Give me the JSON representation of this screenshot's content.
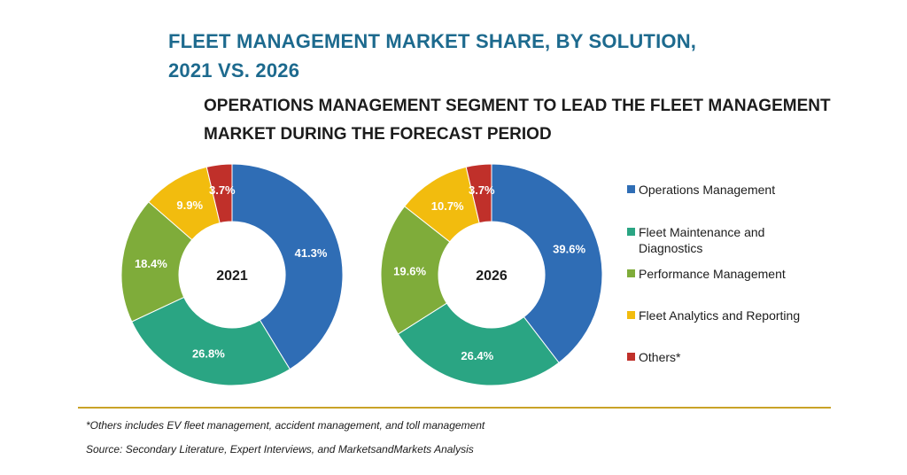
{
  "title": {
    "line1": "FLEET MANAGEMENT MARKET SHARE, BY SOLUTION,",
    "line2": "2021 VS. 2026"
  },
  "subtitle": {
    "line1": "OPERATIONS MANAGEMENT SEGMENT TO LEAD THE FLEET MANAGEMENT",
    "line2": "MARKET DURING THE FORECAST PERIOD"
  },
  "chart_data": {
    "type": "pie",
    "variant": "donut",
    "categories": [
      "Operations Management",
      "Fleet Maintenance and Diagnostics",
      "Performance Management",
      "Fleet Analytics and Reporting",
      "Others*"
    ],
    "colors": [
      "#2f6db5",
      "#2aa583",
      "#7fac3a",
      "#f2bc0e",
      "#c0302a"
    ],
    "series": [
      {
        "name": "2021",
        "values": [
          41.3,
          26.8,
          18.4,
          9.9,
          3.7
        ],
        "labels": [
          "41.3%",
          "26.8%",
          "18.4%",
          "9.9%",
          "3.7%"
        ]
      },
      {
        "name": "2026",
        "values": [
          39.6,
          26.4,
          19.6,
          10.7,
          3.7
        ],
        "labels": [
          "39.6%",
          "26.4%",
          "19.6%",
          "10.7%",
          "3.7%"
        ]
      }
    ],
    "legend": "right"
  },
  "footnote": "*Others includes EV fleet management, accident management, and toll management",
  "source": "Source: Secondary Literature, Expert Interviews, and MarketsandMarkets Analysis"
}
